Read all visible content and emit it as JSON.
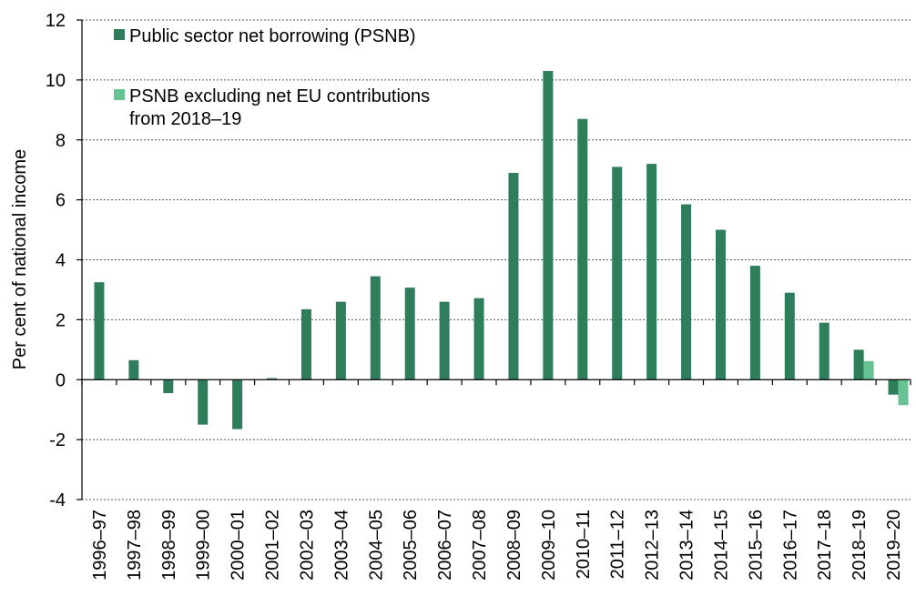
{
  "chart_data": {
    "type": "bar",
    "title": "",
    "xlabel": "",
    "ylabel": "Per cent of national income",
    "ylim": [
      -4,
      12
    ],
    "yticks": [
      -4,
      -2,
      0,
      2,
      4,
      6,
      8,
      10,
      12
    ],
    "grid": true,
    "legend_position": "top-left",
    "categories": [
      "1996–97",
      "1997–98",
      "1998–99",
      "1999–00",
      "2000–01",
      "2001–02",
      "2002–03",
      "2003–04",
      "2004–05",
      "2005–06",
      "2006–07",
      "2007–08",
      "2008–09",
      "2009–10",
      "2010–11",
      "2011–12",
      "2012–13",
      "2013–14",
      "2014–15",
      "2015–16",
      "2016–17",
      "2017–18",
      "2018–19",
      "2019–20"
    ],
    "series": [
      {
        "name": "Public sector net borrowing (PSNB)",
        "color": "#2e7d5b",
        "values": [
          3.25,
          0.65,
          -0.45,
          -1.5,
          -1.65,
          0.05,
          2.35,
          2.6,
          3.45,
          3.07,
          2.6,
          2.72,
          6.9,
          10.3,
          8.7,
          7.1,
          7.2,
          5.85,
          5.0,
          3.8,
          2.9,
          1.9,
          1.0,
          -0.5
        ]
      },
      {
        "name": "PSNB excluding net EU contributions from 2018–19",
        "color": "#66c293",
        "values": [
          null,
          null,
          null,
          null,
          null,
          null,
          null,
          null,
          null,
          null,
          null,
          null,
          null,
          null,
          null,
          null,
          null,
          null,
          null,
          null,
          null,
          null,
          0.62,
          -0.85
        ]
      }
    ]
  }
}
